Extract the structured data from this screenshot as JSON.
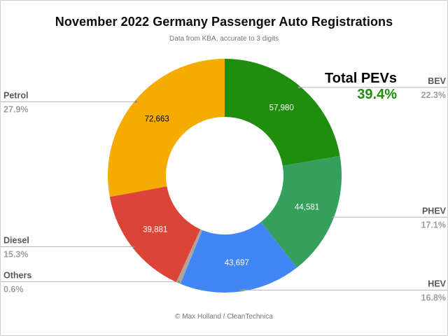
{
  "header": {
    "title": "November 2022 Germany Passenger Auto Registrations",
    "subtitle": "Data from KBA, accurate to 3 digits"
  },
  "total_pevs": {
    "label": "Total PEVs",
    "value": "39.4%",
    "color": "#1E8E0C"
  },
  "footer": {
    "credit": "© Max Holland / CleanTechnica"
  },
  "chart_data": {
    "type": "pie",
    "donut": true,
    "start_angle_deg": 0,
    "direction": "clockwise",
    "title": "November 2022 Germany Passenger Auto Registrations",
    "leader_line_color": "#b5b5b5",
    "leader_dot_color": "#8a8a8a",
    "segments": [
      {
        "label": "BEV",
        "value": 57980,
        "value_label": "57,980",
        "pct": 22.3,
        "pct_label": "22.3%",
        "color": "#1E8E0C",
        "value_label_color": "#FFFFFF",
        "side": "right"
      },
      {
        "label": "PHEV",
        "value": 44581,
        "value_label": "44,581",
        "pct": 17.1,
        "pct_label": "17.1%",
        "color": "#34A05C",
        "value_label_color": "#FFFFFF",
        "side": "right"
      },
      {
        "label": "HEV",
        "value": 43697,
        "value_label": "43,697",
        "pct": 16.8,
        "pct_label": "16.8%",
        "color": "#4285F4",
        "value_label_color": "#FFFFFF",
        "side": "right"
      },
      {
        "label": "Others",
        "value_label": "",
        "pct": 0.6,
        "pct_label": "0.6%",
        "color": "#B3A29A",
        "value_label_color": "#FFFFFF",
        "side": "left"
      },
      {
        "label": "Diesel",
        "value": 39881,
        "value_label": "39,881",
        "pct": 15.3,
        "pct_label": "15.3%",
        "color": "#DB4437",
        "value_label_color": "#FFFFFF",
        "side": "left"
      },
      {
        "label": "Petrol",
        "value": 72663,
        "value_label": "72,663",
        "pct": 27.9,
        "pct_label": "27.9%",
        "color": "#F4AC00",
        "value_label_color": "#000000",
        "side": "left"
      }
    ]
  }
}
